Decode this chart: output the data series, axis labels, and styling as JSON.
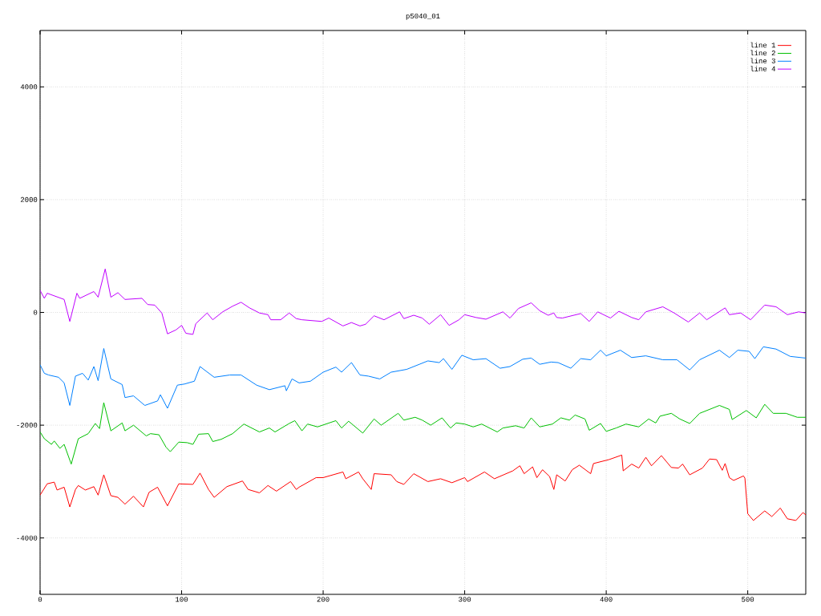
{
  "chart_data": {
    "type": "line",
    "title": "p5040_01",
    "xlim": [
      0,
      541
    ],
    "ylim": [
      -5000,
      5000
    ],
    "xticks": [
      0,
      100,
      200,
      300,
      400,
      500
    ],
    "yticks": [
      -4000,
      -2000,
      0,
      2000,
      4000
    ],
    "grid": true,
    "legend": "top right",
    "marker": "none",
    "line_style": "solid",
    "series": [
      {
        "name": "line 1",
        "color": "#ff0000",
        "x": [
          0,
          5,
          10,
          12,
          17,
          21,
          25,
          27,
          32,
          38,
          41,
          45,
          50,
          55,
          60,
          66,
          73,
          77,
          83,
          90,
          98,
          108,
          113,
          119,
          123,
          132,
          143,
          147,
          155,
          161,
          167,
          177,
          181,
          183,
          195,
          200,
          214,
          216,
          225,
          228,
          234,
          236,
          248,
          252,
          257,
          264,
          274,
          283,
          291,
          300,
          302,
          314,
          321,
          334,
          339,
          342,
          348,
          351,
          355,
          360,
          363,
          365,
          371,
          376,
          381,
          389,
          391,
          402,
          411,
          412,
          418,
          423,
          428,
          432,
          439,
          446,
          451,
          454,
          459,
          468,
          473,
          478,
          482,
          484,
          487,
          490,
          497,
          498,
          500,
          504,
          512,
          517,
          523,
          528,
          534,
          539,
          541
        ],
        "values": [
          -3240,
          -3040,
          -3010,
          -3150,
          -3100,
          -3450,
          -3140,
          -3070,
          -3150,
          -3090,
          -3240,
          -2880,
          -3250,
          -3280,
          -3400,
          -3260,
          -3450,
          -3190,
          -3100,
          -3430,
          -3040,
          -3050,
          -2850,
          -3140,
          -3280,
          -3090,
          -2990,
          -3140,
          -3200,
          -3070,
          -3170,
          -3000,
          -3140,
          -3100,
          -2930,
          -2930,
          -2830,
          -2950,
          -2830,
          -2950,
          -3140,
          -2860,
          -2880,
          -3000,
          -3050,
          -2860,
          -3000,
          -2950,
          -3020,
          -2930,
          -3000,
          -2830,
          -2950,
          -2810,
          -2720,
          -2860,
          -2740,
          -2930,
          -2790,
          -2910,
          -3140,
          -2880,
          -2990,
          -2790,
          -2710,
          -2860,
          -2680,
          -2610,
          -2530,
          -2810,
          -2690,
          -2760,
          -2570,
          -2720,
          -2540,
          -2750,
          -2760,
          -2690,
          -2880,
          -2760,
          -2600,
          -2610,
          -2800,
          -2680,
          -2930,
          -2980,
          -2900,
          -2940,
          -3570,
          -3690,
          -3520,
          -3620,
          -3470,
          -3660,
          -3690,
          -3550,
          -3590
        ]
      },
      {
        "name": "line 2",
        "color": "#00c000",
        "x": [
          0,
          3,
          8,
          10,
          14,
          17,
          22,
          27,
          34,
          39,
          42,
          45,
          50,
          58,
          60,
          66,
          75,
          78,
          84,
          89,
          92,
          98,
          104,
          108,
          112,
          119,
          122,
          128,
          136,
          144,
          155,
          162,
          166,
          176,
          180,
          185,
          189,
          196,
          209,
          213,
          218,
          228,
          236,
          241,
          253,
          257,
          265,
          270,
          276,
          284,
          290,
          294,
          300,
          306,
          312,
          323,
          327,
          336,
          342,
          347,
          353,
          362,
          368,
          374,
          378,
          385,
          388,
          396,
          400,
          407,
          414,
          423,
          430,
          435,
          438,
          446,
          452,
          459,
          466,
          480,
          487,
          489,
          499,
          506,
          512,
          518,
          527,
          535,
          541
        ],
        "values": [
          -2120,
          -2240,
          -2340,
          -2280,
          -2410,
          -2340,
          -2690,
          -2240,
          -2150,
          -1970,
          -2060,
          -1600,
          -2100,
          -1960,
          -2100,
          -2000,
          -2190,
          -2150,
          -2170,
          -2390,
          -2470,
          -2300,
          -2310,
          -2340,
          -2160,
          -2150,
          -2290,
          -2250,
          -2150,
          -1980,
          -2120,
          -2050,
          -2120,
          -1970,
          -1920,
          -2100,
          -1980,
          -2030,
          -1920,
          -2050,
          -1930,
          -2140,
          -1890,
          -2000,
          -1790,
          -1910,
          -1860,
          -1910,
          -2000,
          -1870,
          -2050,
          -1960,
          -1980,
          -2030,
          -1980,
          -2120,
          -2050,
          -2010,
          -2050,
          -1870,
          -2030,
          -1980,
          -1870,
          -1910,
          -1820,
          -1890,
          -2090,
          -1970,
          -2110,
          -2050,
          -1980,
          -2030,
          -1890,
          -1960,
          -1840,
          -1790,
          -1890,
          -1970,
          -1790,
          -1650,
          -1720,
          -1900,
          -1740,
          -1870,
          -1630,
          -1790,
          -1790,
          -1860,
          -1860
        ]
      },
      {
        "name": "line 3",
        "color": "#0080ff",
        "x": [
          0,
          3,
          6,
          13,
          17,
          21,
          25,
          30,
          34,
          38,
          41,
          45,
          50,
          58,
          60,
          66,
          74,
          83,
          85,
          90,
          97,
          102,
          109,
          113,
          123,
          134,
          142,
          153,
          162,
          173,
          174,
          178,
          183,
          191,
          200,
          209,
          213,
          220,
          226,
          232,
          240,
          248,
          259,
          268,
          274,
          282,
          285,
          291,
          298,
          306,
          315,
          325,
          332,
          341,
          347,
          353,
          361,
          366,
          375,
          382,
          389,
          396,
          400,
          410,
          418,
          428,
          440,
          450,
          459,
          466,
          480,
          487,
          493,
          501,
          505,
          511,
          520,
          530,
          541
        ],
        "values": [
          -930,
          -1080,
          -1110,
          -1150,
          -1250,
          -1650,
          -1130,
          -1080,
          -1200,
          -960,
          -1210,
          -640,
          -1180,
          -1280,
          -1510,
          -1480,
          -1650,
          -1570,
          -1460,
          -1700,
          -1290,
          -1270,
          -1220,
          -960,
          -1150,
          -1110,
          -1110,
          -1290,
          -1370,
          -1300,
          -1390,
          -1180,
          -1250,
          -1220,
          -1060,
          -970,
          -1060,
          -890,
          -1110,
          -1130,
          -1180,
          -1060,
          -1010,
          -920,
          -860,
          -890,
          -820,
          -1010,
          -760,
          -840,
          -820,
          -990,
          -960,
          -830,
          -810,
          -920,
          -880,
          -890,
          -990,
          -820,
          -840,
          -670,
          -770,
          -670,
          -800,
          -770,
          -840,
          -840,
          -1020,
          -840,
          -670,
          -800,
          -670,
          -690,
          -820,
          -610,
          -650,
          -780,
          -810
        ]
      },
      {
        "name": "line 4",
        "color": "#c000ff",
        "x": [
          0,
          3,
          5,
          17,
          21,
          26,
          28,
          38,
          41,
          46,
          50,
          55,
          60,
          72,
          76,
          81,
          86,
          90,
          96,
          100,
          103,
          108,
          110,
          118,
          122,
          129,
          136,
          142,
          148,
          155,
          161,
          163,
          170,
          176,
          181,
          185,
          199,
          204,
          214,
          220,
          226,
          230,
          236,
          243,
          254,
          257,
          264,
          270,
          275,
          283,
          289,
          296,
          300,
          308,
          315,
          327,
          332,
          338,
          347,
          353,
          359,
          363,
          365,
          369,
          382,
          388,
          394,
          403,
          409,
          418,
          423,
          428,
          440,
          448,
          458,
          466,
          471,
          484,
          487,
          495,
          502,
          512,
          520,
          528,
          536,
          541
        ],
        "values": [
          390,
          250,
          340,
          230,
          -160,
          340,
          250,
          370,
          270,
          770,
          270,
          350,
          230,
          250,
          140,
          130,
          -10,
          -380,
          -310,
          -230,
          -370,
          -390,
          -200,
          -10,
          -130,
          10,
          110,
          180,
          80,
          -10,
          -40,
          -130,
          -130,
          -10,
          -110,
          -130,
          -160,
          -100,
          -240,
          -180,
          -240,
          -210,
          -60,
          -130,
          10,
          -110,
          -50,
          -100,
          -210,
          -40,
          -230,
          -130,
          -40,
          -90,
          -120,
          10,
          -100,
          70,
          170,
          30,
          -50,
          -10,
          -90,
          -100,
          -20,
          -160,
          10,
          -100,
          20,
          -90,
          -130,
          10,
          100,
          -10,
          -170,
          -10,
          -130,
          80,
          -40,
          -10,
          -130,
          130,
          100,
          -40,
          10,
          -10
        ]
      }
    ]
  }
}
